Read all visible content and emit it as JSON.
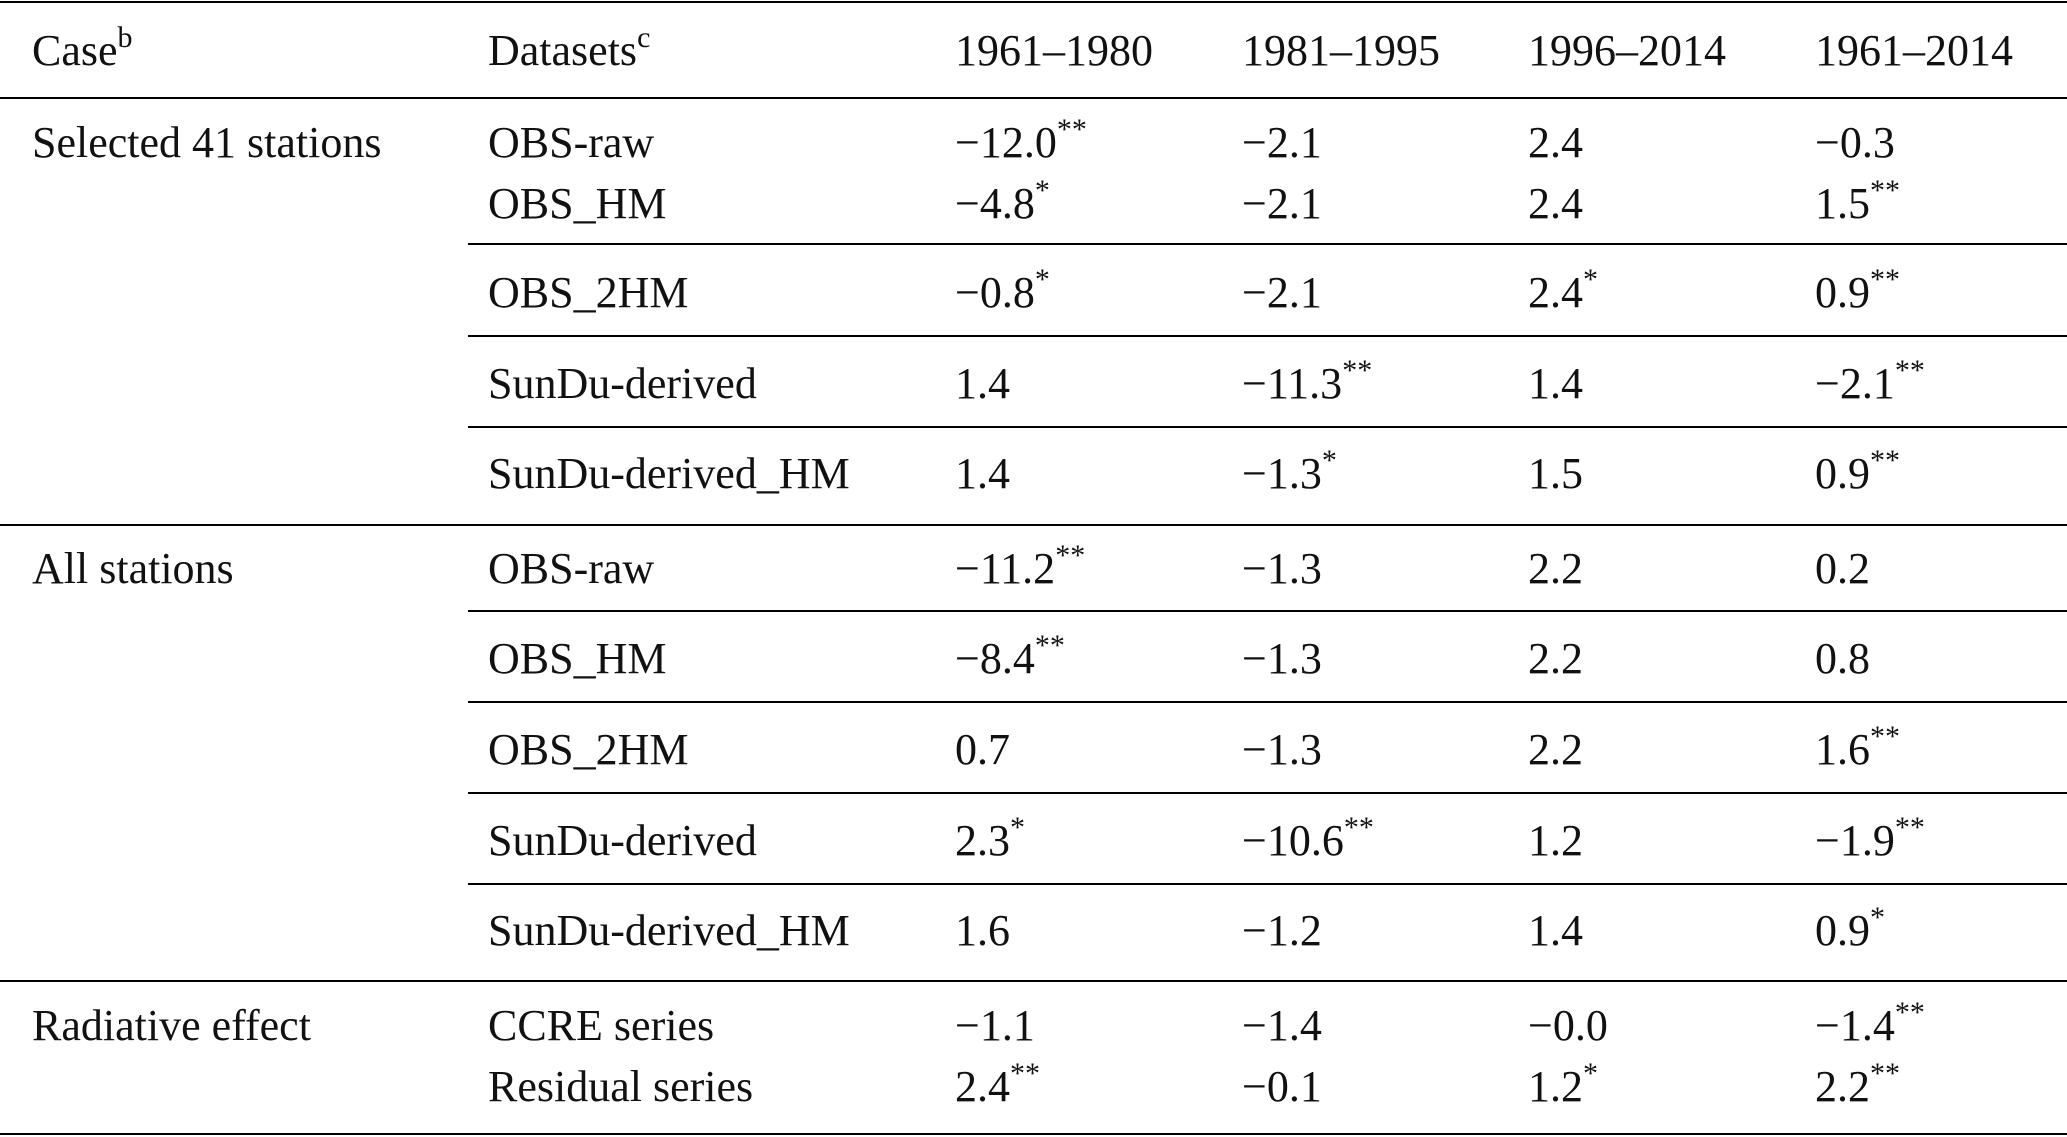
{
  "header": {
    "case": "Case",
    "case_sup": "b",
    "datasets": "Datasets",
    "datasets_sup": "c",
    "periods": [
      "1961–1980",
      "1981–1995",
      "1996–2014",
      "1961–2014"
    ]
  },
  "groups": [
    {
      "case": "Selected 41 stations",
      "rows": [
        {
          "dataset": "OBS-raw",
          "values": [
            [
              "−12.0",
              "**"
            ],
            [
              "−2.1",
              ""
            ],
            [
              "2.4",
              ""
            ],
            [
              "−0.3",
              ""
            ]
          ]
        },
        {
          "dataset": "OBS_HM",
          "values": [
            [
              "−4.8",
              "*"
            ],
            [
              "−2.1",
              ""
            ],
            [
              "2.4",
              ""
            ],
            [
              "1.5",
              "**"
            ]
          ]
        },
        {
          "dataset": "OBS_2HM",
          "values": [
            [
              "−0.8",
              "*"
            ],
            [
              "−2.1",
              ""
            ],
            [
              "2.4",
              "*"
            ],
            [
              "0.9",
              "**"
            ]
          ]
        },
        {
          "dataset": "SunDu-derived",
          "values": [
            [
              "1.4",
              ""
            ],
            [
              "−11.3",
              "**"
            ],
            [
              "1.4",
              ""
            ],
            [
              "−2.1",
              "**"
            ]
          ]
        },
        {
          "dataset": "SunDu-derived_HM",
          "values": [
            [
              "1.4",
              ""
            ],
            [
              "−1.3",
              "*"
            ],
            [
              "1.5",
              ""
            ],
            [
              "0.9",
              "**"
            ]
          ]
        }
      ]
    },
    {
      "case": "All stations",
      "rows": [
        {
          "dataset": "OBS-raw",
          "values": [
            [
              "−11.2",
              "**"
            ],
            [
              "−1.3",
              ""
            ],
            [
              "2.2",
              ""
            ],
            [
              "0.2",
              ""
            ]
          ]
        },
        {
          "dataset": "OBS_HM",
          "values": [
            [
              "−8.4",
              "**"
            ],
            [
              "−1.3",
              ""
            ],
            [
              "2.2",
              ""
            ],
            [
              "0.8",
              ""
            ]
          ]
        },
        {
          "dataset": "OBS_2HM",
          "values": [
            [
              "0.7",
              ""
            ],
            [
              "−1.3",
              ""
            ],
            [
              "2.2",
              ""
            ],
            [
              "1.6",
              "**"
            ]
          ]
        },
        {
          "dataset": "SunDu-derived",
          "values": [
            [
              "2.3",
              "*"
            ],
            [
              "−10.6",
              "**"
            ],
            [
              "1.2",
              ""
            ],
            [
              "−1.9",
              "**"
            ]
          ]
        },
        {
          "dataset": "SunDu-derived_HM",
          "values": [
            [
              "1.6",
              ""
            ],
            [
              "−1.2",
              ""
            ],
            [
              "1.4",
              ""
            ],
            [
              "0.9",
              "*"
            ]
          ]
        }
      ]
    },
    {
      "case": "Radiative effect",
      "rows": [
        {
          "dataset": "CCRE series",
          "values": [
            [
              "−1.1",
              ""
            ],
            [
              "−1.4",
              ""
            ],
            [
              "−0.0",
              ""
            ],
            [
              "−1.4",
              "**"
            ]
          ]
        },
        {
          "dataset": "Residual series",
          "values": [
            [
              "2.4",
              "**"
            ],
            [
              "−0.1",
              ""
            ],
            [
              "1.2",
              "*"
            ],
            [
              "2.2",
              "**"
            ]
          ]
        }
      ]
    }
  ]
}
